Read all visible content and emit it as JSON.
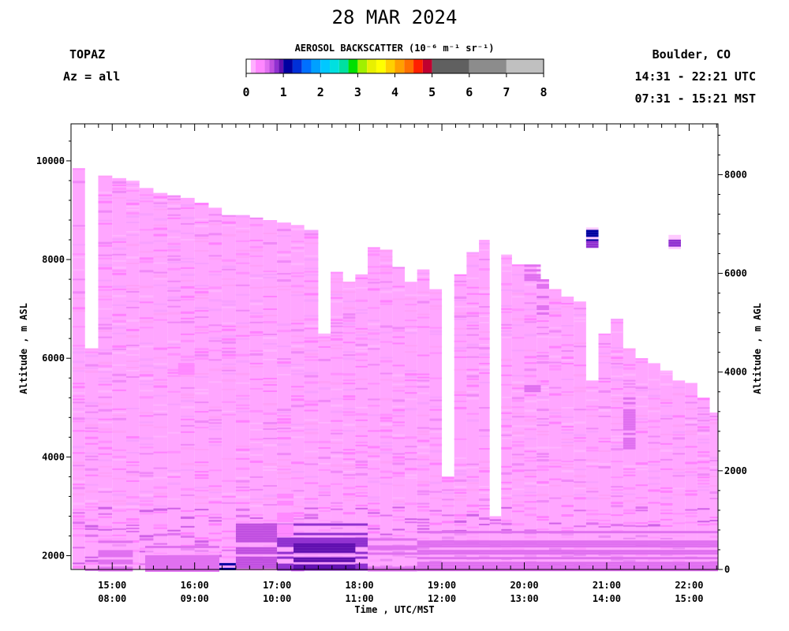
{
  "header": {
    "title": "28 MAR 2024",
    "site": "TOPAZ",
    "azimuth": "Az = all",
    "location": "Boulder, CO",
    "utc_range": "14:31 - 22:21 UTC",
    "mst_range": "07:31 - 15:21 MST"
  },
  "colorbar": {
    "title": "AEROSOL BACKSCATTER (10⁻⁶ m⁻¹ sr⁻¹)",
    "ticks": [
      "0",
      "1",
      "2",
      "3",
      "4",
      "5",
      "6",
      "7",
      "8"
    ],
    "bins": [
      {
        "from": 0.0,
        "to": 0.125,
        "color": "#ffffff"
      },
      {
        "from": 0.125,
        "to": 0.25,
        "color": "#ffb0ff"
      },
      {
        "from": 0.25,
        "to": 0.5,
        "color": "#ff88ff"
      },
      {
        "from": 0.5,
        "to": 0.625,
        "color": "#e070f0"
      },
      {
        "from": 0.625,
        "to": 0.75,
        "color": "#c050e0"
      },
      {
        "from": 0.75,
        "to": 0.875,
        "color": "#9030d0"
      },
      {
        "from": 0.875,
        "to": 1.0,
        "color": "#6010b0"
      },
      {
        "from": 1.0,
        "to": 1.25,
        "color": "#0000a0"
      },
      {
        "from": 1.25,
        "to": 1.5,
        "color": "#0030d8"
      },
      {
        "from": 1.5,
        "to": 1.75,
        "color": "#0070ff"
      },
      {
        "from": 1.75,
        "to": 2.0,
        "color": "#00a0ff"
      },
      {
        "from": 2.0,
        "to": 2.25,
        "color": "#00c8ff"
      },
      {
        "from": 2.25,
        "to": 2.5,
        "color": "#00e0e0"
      },
      {
        "from": 2.5,
        "to": 2.75,
        "color": "#00e0a0"
      },
      {
        "from": 2.75,
        "to": 3.0,
        "color": "#00e000"
      },
      {
        "from": 3.0,
        "to": 3.25,
        "color": "#a0f000"
      },
      {
        "from": 3.25,
        "to": 3.5,
        "color": "#e8f000"
      },
      {
        "from": 3.5,
        "to": 3.75,
        "color": "#ffff00"
      },
      {
        "from": 3.75,
        "to": 4.0,
        "color": "#ffd000"
      },
      {
        "from": 4.0,
        "to": 4.25,
        "color": "#ffa000"
      },
      {
        "from": 4.25,
        "to": 4.5,
        "color": "#ff7000"
      },
      {
        "from": 4.5,
        "to": 4.75,
        "color": "#ff2000"
      },
      {
        "from": 4.75,
        "to": 5.0,
        "color": "#c00030"
      },
      {
        "from": 5.0,
        "to": 6.0,
        "color": "#606060"
      },
      {
        "from": 6.0,
        "to": 7.0,
        "color": "#8c8c8c"
      },
      {
        "from": 7.0,
        "to": 8.0,
        "color": "#c0c0c0"
      }
    ]
  },
  "axes": {
    "x_label": "Time , UTC/MST",
    "y_left_label": "Altitude , m ASL",
    "y_right_label": "Altitude , m AGL"
  },
  "chart_data": {
    "type": "heatmap",
    "title": "28 MAR 2024",
    "variable": "AEROSOL BACKSCATTER",
    "units": "10^-6 m^-1 sr^-1",
    "color_range": [
      0,
      8
    ],
    "xlabel": "Time , UTC/MST",
    "ylabel": "Altitude , m ASL",
    "ylabel_right": "Altitude , m AGL",
    "x_range_utc_hours": [
      14.5,
      22.35
    ],
    "y_range_m_asl": [
      1720,
      10750
    ],
    "y_right_range_m_agl": [
      0,
      9030
    ],
    "x_ticks": [
      {
        "value": 15,
        "utc": "15:00",
        "mst": "08:00"
      },
      {
        "value": 16,
        "utc": "16:00",
        "mst": "09:00"
      },
      {
        "value": 17,
        "utc": "17:00",
        "mst": "10:00"
      },
      {
        "value": 18,
        "utc": "18:00",
        "mst": "11:00"
      },
      {
        "value": 19,
        "utc": "19:00",
        "mst": "12:00"
      },
      {
        "value": 20,
        "utc": "20:00",
        "mst": "13:00"
      },
      {
        "value": 21,
        "utc": "21:00",
        "mst": "14:00"
      },
      {
        "value": 22,
        "utc": "22:00",
        "mst": "15:00"
      }
    ],
    "y_left_ticks": [
      2000,
      4000,
      6000,
      8000,
      10000
    ],
    "y_right_ticks": [
      0,
      2000,
      4000,
      6000,
      8000
    ],
    "profiles": [
      {
        "start": 14.52,
        "end": 14.67,
        "top": 9850
      },
      {
        "start": 14.67,
        "end": 14.83,
        "top": 6200
      },
      {
        "start": 14.83,
        "end": 15.0,
        "top": 9700
      },
      {
        "start": 15.0,
        "end": 15.17,
        "top": 9650
      },
      {
        "start": 15.17,
        "end": 15.33,
        "top": 9600
      },
      {
        "start": 15.33,
        "end": 15.5,
        "top": 9450
      },
      {
        "start": 15.5,
        "end": 15.67,
        "top": 9350
      },
      {
        "start": 15.67,
        "end": 15.83,
        "top": 9300
      },
      {
        "start": 15.83,
        "end": 16.0,
        "top": 9250
      },
      {
        "start": 16.0,
        "end": 16.17,
        "top": 9150
      },
      {
        "start": 16.17,
        "end": 16.33,
        "top": 9050
      },
      {
        "start": 16.33,
        "end": 16.5,
        "top": 8900
      },
      {
        "start": 16.5,
        "end": 16.67,
        "top": 8900
      },
      {
        "start": 16.67,
        "end": 16.83,
        "top": 8850
      },
      {
        "start": 16.83,
        "end": 17.0,
        "top": 8800
      },
      {
        "start": 17.0,
        "end": 17.17,
        "top": 8750
      },
      {
        "start": 17.17,
        "end": 17.33,
        "top": 8700
      },
      {
        "start": 17.33,
        "end": 17.5,
        "top": 8600
      },
      {
        "start": 17.5,
        "end": 17.65,
        "top": 6500
      },
      {
        "start": 17.65,
        "end": 17.8,
        "top": 7750
      },
      {
        "start": 17.8,
        "end": 17.95,
        "top": 7550
      },
      {
        "start": 17.95,
        "end": 18.1,
        "top": 7700
      },
      {
        "start": 18.1,
        "end": 18.25,
        "top": 8250
      },
      {
        "start": 18.25,
        "end": 18.4,
        "top": 8200
      },
      {
        "start": 18.4,
        "end": 18.55,
        "top": 7850
      },
      {
        "start": 18.55,
        "end": 18.7,
        "top": 7550
      },
      {
        "start": 18.7,
        "end": 18.85,
        "top": 7800
      },
      {
        "start": 18.85,
        "end": 19.0,
        "top": 7400
      },
      {
        "start": 19.0,
        "end": 19.15,
        "top": 3600
      },
      {
        "start": 19.15,
        "end": 19.3,
        "top": 7700
      },
      {
        "start": 19.3,
        "end": 19.45,
        "top": 8150
      },
      {
        "start": 19.45,
        "end": 19.58,
        "top": 8400
      },
      {
        "start": 19.58,
        "end": 19.72,
        "top": 2800
      },
      {
        "start": 19.72,
        "end": 19.85,
        "top": 8100
      },
      {
        "start": 19.85,
        "end": 20.0,
        "top": 7900
      },
      {
        "start": 20.0,
        "end": 20.15,
        "top": 7900
      },
      {
        "start": 20.15,
        "end": 20.3,
        "top": 7600
      },
      {
        "start": 20.3,
        "end": 20.45,
        "top": 7400
      },
      {
        "start": 20.45,
        "end": 20.6,
        "top": 7250
      },
      {
        "start": 20.6,
        "end": 20.75,
        "top": 7150
      },
      {
        "start": 20.75,
        "end": 20.9,
        "top": 5550
      },
      {
        "start": 20.9,
        "end": 21.05,
        "top": 6500
      },
      {
        "start": 21.05,
        "end": 21.2,
        "top": 6800
      },
      {
        "start": 21.2,
        "end": 21.35,
        "top": 6200
      },
      {
        "start": 21.35,
        "end": 21.5,
        "top": 6000
      },
      {
        "start": 21.5,
        "end": 21.65,
        "top": 5900
      },
      {
        "start": 21.65,
        "end": 21.8,
        "top": 5750
      },
      {
        "start": 21.8,
        "end": 21.95,
        "top": 5550
      },
      {
        "start": 21.95,
        "end": 22.1,
        "top": 5500
      },
      {
        "start": 22.1,
        "end": 22.25,
        "top": 5200
      },
      {
        "start": 22.25,
        "end": 22.35,
        "top": 4900
      }
    ],
    "features": [
      {
        "start": 14.83,
        "end": 15.25,
        "bottom": 1720,
        "top": 2400,
        "value": 0.5
      },
      {
        "start": 15.4,
        "end": 16.3,
        "bottom": 1720,
        "top": 2200,
        "value": 0.5
      },
      {
        "start": 16.3,
        "end": 16.5,
        "bottom": 1720,
        "top": 1850,
        "value": 1.2
      },
      {
        "start": 16.5,
        "end": 17.0,
        "bottom": 1720,
        "top": 2700,
        "value": 0.7
      },
      {
        "start": 17.0,
        "end": 18.1,
        "bottom": 1720,
        "top": 2750,
        "value": 0.75
      },
      {
        "start": 17.2,
        "end": 17.95,
        "bottom": 1760,
        "top": 2250,
        "value": 0.9
      },
      {
        "start": 18.1,
        "end": 18.7,
        "bottom": 1720,
        "top": 2400,
        "value": 0.55
      },
      {
        "start": 18.7,
        "end": 22.35,
        "bottom": 1720,
        "top": 2500,
        "value": 0.5
      },
      {
        "start": 20.0,
        "end": 20.2,
        "bottom": 7600,
        "top": 7900,
        "value": 0.6
      },
      {
        "start": 20.15,
        "end": 20.3,
        "bottom": 6800,
        "top": 7600,
        "value": 0.6
      },
      {
        "start": 20.0,
        "end": 20.2,
        "bottom": 5300,
        "top": 5600,
        "value": 0.6
      },
      {
        "start": 20.75,
        "end": 20.9,
        "bottom": 8380,
        "top": 8650,
        "value": 1.0
      },
      {
        "start": 20.75,
        "end": 20.9,
        "bottom": 8250,
        "top": 8380,
        "value": 0.75
      },
      {
        "start": 21.75,
        "end": 21.9,
        "bottom": 8250,
        "top": 8500,
        "value": 0.8
      },
      {
        "start": 21.2,
        "end": 21.35,
        "bottom": 4200,
        "top": 5400,
        "value": 0.6
      },
      {
        "start": 17.0,
        "end": 17.2,
        "bottom": 2400,
        "top": 3400,
        "value": 0.3
      },
      {
        "start": 15.8,
        "end": 16.0,
        "bottom": 5700,
        "top": 6000,
        "value": 0.4
      }
    ]
  }
}
